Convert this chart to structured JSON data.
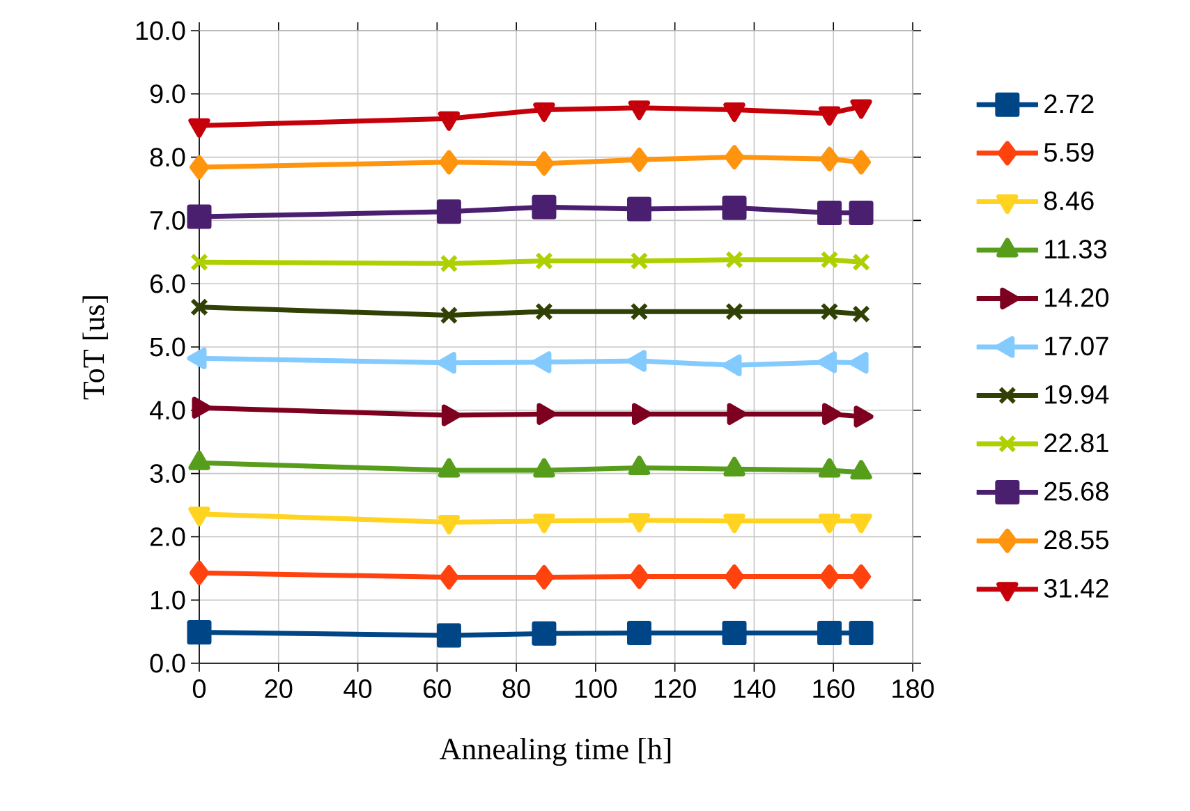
{
  "chart_data": {
    "type": "line",
    "xlabel": "Annealing time [h]",
    "ylabel": "ToT [us]",
    "x": [
      0,
      63,
      87,
      111,
      135,
      159,
      167
    ],
    "xlim": [
      0,
      180
    ],
    "xticks": [
      0,
      20,
      40,
      60,
      80,
      100,
      120,
      140,
      160,
      180
    ],
    "ylim": [
      0,
      10
    ],
    "yticks": [
      {
        "value": 0,
        "label": "0.0"
      },
      {
        "value": 1,
        "label": "1.0"
      },
      {
        "value": 2,
        "label": "2.0"
      },
      {
        "value": 3,
        "label": "3.0"
      },
      {
        "value": 4,
        "label": "4.0"
      },
      {
        "value": 5,
        "label": "5.0"
      },
      {
        "value": 6,
        "label": "6.0"
      },
      {
        "value": 7,
        "label": "7.0"
      },
      {
        "value": 8,
        "label": "8.0"
      },
      {
        "value": 9,
        "label": "9.0"
      },
      {
        "value": 10,
        "label": "10.0"
      }
    ],
    "grid": true,
    "legend": "right",
    "line_style": "solid",
    "series": [
      {
        "name": "2.72",
        "color": "#004586",
        "marker": "square",
        "values": [
          0.49,
          0.44,
          0.47,
          0.48,
          0.48,
          0.48,
          0.48
        ]
      },
      {
        "name": "5.59",
        "color": "#ff420e",
        "marker": "diamond",
        "values": [
          1.43,
          1.36,
          1.36,
          1.37,
          1.37,
          1.37,
          1.37
        ]
      },
      {
        "name": "8.46",
        "color": "#ffd320",
        "marker": "triangle-down",
        "values": [
          2.36,
          2.23,
          2.25,
          2.26,
          2.25,
          2.25,
          2.25
        ]
      },
      {
        "name": "11.33",
        "color": "#579d1c",
        "marker": "triangle",
        "values": [
          3.17,
          3.05,
          3.05,
          3.09,
          3.07,
          3.05,
          3.02
        ]
      },
      {
        "name": "14.20",
        "color": "#7e0021",
        "marker": "triangle-right",
        "values": [
          4.04,
          3.92,
          3.94,
          3.94,
          3.94,
          3.94,
          3.9
        ]
      },
      {
        "name": "17.07",
        "color": "#83caff",
        "marker": "triangle-left",
        "values": [
          4.82,
          4.75,
          4.76,
          4.78,
          4.71,
          4.76,
          4.75
        ]
      },
      {
        "name": "19.94",
        "color": "#314004",
        "marker": "cross",
        "values": [
          5.63,
          5.5,
          5.56,
          5.56,
          5.56,
          5.56,
          5.52
        ]
      },
      {
        "name": "22.81",
        "color": "#aecf00",
        "marker": "cross",
        "values": [
          6.34,
          6.32,
          6.36,
          6.36,
          6.38,
          6.38,
          6.34
        ]
      },
      {
        "name": "25.68",
        "color": "#4b1f6f",
        "marker": "square",
        "values": [
          7.06,
          7.14,
          7.21,
          7.18,
          7.2,
          7.12,
          7.12
        ]
      },
      {
        "name": "28.55",
        "color": "#ff950e",
        "marker": "diamond",
        "values": [
          7.84,
          7.92,
          7.9,
          7.96,
          8.0,
          7.97,
          7.92
        ]
      },
      {
        "name": "31.42",
        "color": "#c5000b",
        "marker": "triangle-down",
        "values": [
          8.5,
          8.61,
          8.75,
          8.78,
          8.75,
          8.69,
          8.8
        ]
      }
    ]
  }
}
